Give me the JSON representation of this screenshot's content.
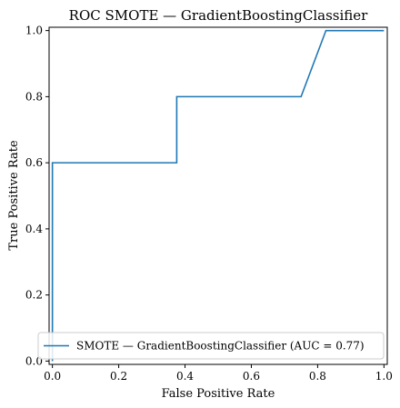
{
  "chart_data": {
    "type": "line",
    "title": "ROC SMOTE — GradientBoostingClassifier",
    "xlabel": "False Positive Rate",
    "ylabel": "True Positive Rate",
    "xlim": [
      -0.01,
      1.01
    ],
    "ylim": [
      -0.01,
      1.01
    ],
    "x_ticks": [
      0.0,
      0.2,
      0.4,
      0.6,
      0.8,
      1.0
    ],
    "y_ticks": [
      0.0,
      0.2,
      0.4,
      0.6,
      0.8,
      1.0
    ],
    "x_tick_labels": [
      "0.0",
      "0.2",
      "0.4",
      "0.6",
      "0.8",
      "1.0"
    ],
    "y_tick_labels": [
      "0.0",
      "0.2",
      "0.4",
      "0.6",
      "0.8",
      "1.0"
    ],
    "grid": false,
    "legend_position": "lower-right",
    "series": [
      {
        "name": "SMOTE — GradientBoostingClassifier (AUC = 0.77)",
        "color": "#1f77b4",
        "x": [
          0.0,
          0.0,
          0.0,
          0.375,
          0.375,
          0.75,
          0.825,
          1.0
        ],
        "y": [
          0.0,
          0.2,
          0.6,
          0.6,
          0.8,
          0.8,
          1.0,
          1.0
        ]
      }
    ]
  }
}
